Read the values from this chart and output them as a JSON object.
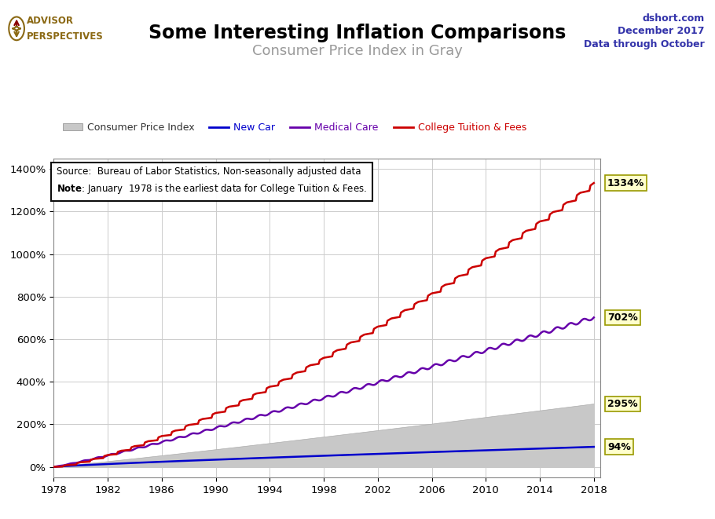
{
  "title": "Some Interesting Inflation Comparisons",
  "subtitle": "Consumer Price Index in Gray",
  "title_fontsize": 17,
  "subtitle_fontsize": 13,
  "subtitle_color": "#999999",
  "top_right_lines": [
    "dshort.com",
    "December 2017",
    "Data through October"
  ],
  "top_right_color": "#3333aa",
  "source_line1": "Source:  Bureau of Labor Statistics, Non-seasonally adjusted data",
  "source_line2_bold": "Note",
  "source_line2_rest": ": January  1978 is the earliest data for College Tuition & Fees.",
  "logo_text_top": "ADVISOR",
  "logo_text_bot": "PERSPECTIVES",
  "logo_color": "#8B6914",
  "logo_icon_color": "#8B0000",
  "year_start": 1978,
  "year_end": 2018,
  "ylim_pct": [
    -50,
    1450
  ],
  "ytick_pcts": [
    0,
    200,
    400,
    600,
    800,
    1000,
    1200,
    1400
  ],
  "xticks": [
    1978,
    1982,
    1986,
    1990,
    1994,
    1998,
    2002,
    2006,
    2010,
    2014,
    2018
  ],
  "end_labels": [
    {
      "text": "1334%",
      "pct": 1334,
      "color": "#cc0000"
    },
    {
      "text": "702%",
      "pct": 702,
      "color": "#6600aa"
    },
    {
      "text": "295%",
      "pct": 295,
      "color": "#aaaaaa"
    },
    {
      "text": "94%",
      "pct": 94,
      "color": "#0000cc"
    }
  ],
  "cpi_color": "#c8c8c8",
  "new_car_color": "#0000cc",
  "medical_color": "#6600aa",
  "college_color": "#cc0000",
  "bg_color": "#ffffff",
  "grid_color": "#cccccc"
}
